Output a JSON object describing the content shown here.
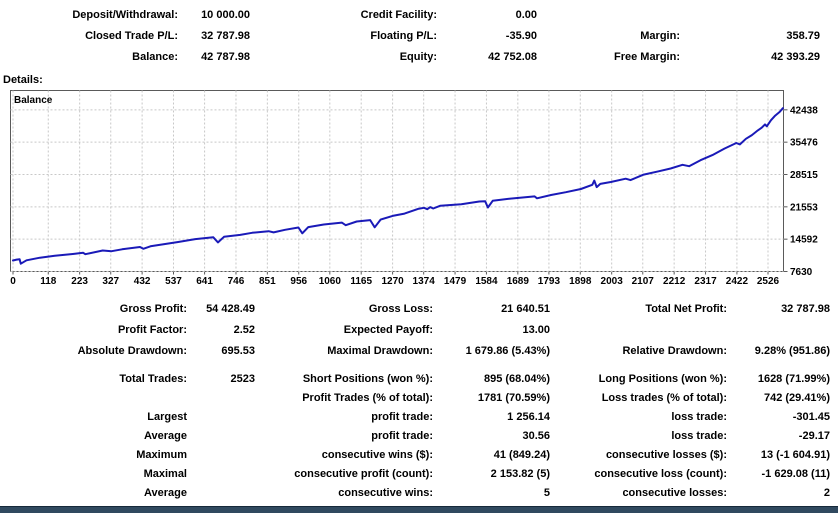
{
  "account_summary": {
    "rows": [
      {
        "l1": "Deposit/Withdrawal:",
        "v1": "10 000.00",
        "l2": "Credit Facility:",
        "v2": "0.00",
        "l3": "",
        "v3": ""
      },
      {
        "l1": "Closed Trade P/L:",
        "v1": "32 787.98",
        "l2": "Floating P/L:",
        "v2": "-35.90",
        "l3": "Margin:",
        "v3": "358.79"
      },
      {
        "l1": "Balance:",
        "v1": "42 787.98",
        "l2": "Equity:",
        "v2": "42 752.08",
        "l3": "Free Margin:",
        "v3": "42 393.29"
      }
    ]
  },
  "details_label": "Details:",
  "chart_data": {
    "type": "line",
    "title": "Balance",
    "xlabel": "",
    "ylabel": "",
    "x_ticks": [
      0,
      118,
      223,
      327,
      432,
      537,
      641,
      746,
      851,
      956,
      1060,
      1165,
      1270,
      1374,
      1479,
      1584,
      1689,
      1793,
      1898,
      2003,
      2107,
      2212,
      2317,
      2422,
      2526
    ],
    "y_ticks": [
      7630,
      14592,
      21553,
      28515,
      35476,
      42438
    ],
    "x_range": [
      0,
      2576
    ],
    "y_range": [
      7630,
      46600
    ],
    "grid": true,
    "legend_position": "top-left-inside",
    "series": [
      {
        "name": "Balance",
        "x": [
          0,
          12,
          22,
          26,
          45,
          90,
          140,
          200,
          235,
          242,
          300,
          330,
          365,
          425,
          436,
          460,
          550,
          610,
          670,
          686,
          706,
          760,
          800,
          855,
          872,
          910,
          955,
          968,
          988,
          1040,
          1100,
          1113,
          1150,
          1195,
          1210,
          1230,
          1270,
          1310,
          1355,
          1375,
          1386,
          1396,
          1406,
          1430,
          1500,
          1560,
          1580,
          1589,
          1605,
          1660,
          1745,
          1753,
          1800,
          1850,
          1900,
          1938,
          1945,
          1953,
          1965,
          2000,
          2050,
          2066,
          2110,
          2160,
          2200,
          2240,
          2262,
          2300,
          2340,
          2380,
          2420,
          2432,
          2452,
          2472,
          2492,
          2505,
          2516,
          2522,
          2536,
          2550,
          2565,
          2576
        ],
        "y": [
          10000,
          10200,
          10256,
          9304,
          10050,
          10600,
          11000,
          11400,
          11650,
          11350,
          12150,
          12000,
          12400,
          12900,
          12520,
          13050,
          13950,
          14600,
          15000,
          13900,
          15100,
          15500,
          15960,
          16300,
          16050,
          16600,
          17100,
          15850,
          17200,
          17750,
          18150,
          17600,
          18400,
          18700,
          17150,
          18800,
          19600,
          20100,
          21100,
          21350,
          21050,
          21500,
          21200,
          21800,
          22100,
          22700,
          22750,
          21400,
          22850,
          23300,
          23800,
          23400,
          24100,
          24700,
          25400,
          26300,
          27200,
          25800,
          26500,
          26900,
          27600,
          27300,
          28500,
          29200,
          29800,
          30600,
          30300,
          31600,
          32700,
          34100,
          35300,
          35000,
          36200,
          37000,
          38000,
          38600,
          39300,
          38900,
          40200,
          41200,
          42000,
          42788
        ]
      }
    ]
  },
  "stats": {
    "rows": [
      {
        "l1": "Gross Profit:",
        "v1": "54 428.49",
        "l2": "Gross Loss:",
        "v2": "21 640.51",
        "l3": "Total Net Profit:",
        "v3": "32 787.98"
      },
      {
        "l1": "Profit Factor:",
        "v1": "2.52",
        "l2": "Expected Payoff:",
        "v2": "13.00",
        "l3": "",
        "v3": ""
      },
      {
        "l1": "Absolute Drawdown:",
        "v1": "695.53",
        "l2": "Maximal Drawdown:",
        "v2": "1 679.86 (5.43%)",
        "l3": "Relative Drawdown:",
        "v3": "9.28% (951.86)"
      },
      {
        "l1": "Total Trades:",
        "v1": "2523",
        "l2": "Short Positions (won %):",
        "v2": "895 (68.04%)",
        "l3": "Long Positions (won %):",
        "v3": "1628 (71.99%)"
      },
      {
        "l1": "",
        "v1": "",
        "l2": "Profit Trades (% of total):",
        "v2": "1781 (70.59%)",
        "l3": "Loss trades (% of total):",
        "v3": "742 (29.41%)"
      },
      {
        "l1": "Largest",
        "v1": "",
        "l2": "profit trade:",
        "v2": "1 256.14",
        "l3": "loss trade:",
        "v3": "-301.45"
      },
      {
        "l1": "Average",
        "v1": "",
        "l2": "profit trade:",
        "v2": "30.56",
        "l3": "loss trade:",
        "v3": "-29.17"
      },
      {
        "l1": "Maximum",
        "v1": "",
        "l2": "consecutive wins ($):",
        "v2": "41 (849.24)",
        "l3": "consecutive losses ($):",
        "v3": "13 (-1 604.91)"
      },
      {
        "l1": "Maximal",
        "v1": "",
        "l2": "consecutive profit (count):",
        "v2": "2 153.82 (5)",
        "l3": "consecutive loss (count):",
        "v3": "-1 629.08 (11)"
      },
      {
        "l1": "Average",
        "v1": "",
        "l2": "consecutive wins:",
        "v2": "5",
        "l3": "consecutive losses:",
        "v3": "2"
      }
    ]
  },
  "colors": {
    "line": "#1a1ab8",
    "grid": "#c8c8c8",
    "chart_border": "#5a5a5a",
    "bottom_bar": "#30495f",
    "text": "#000000"
  }
}
